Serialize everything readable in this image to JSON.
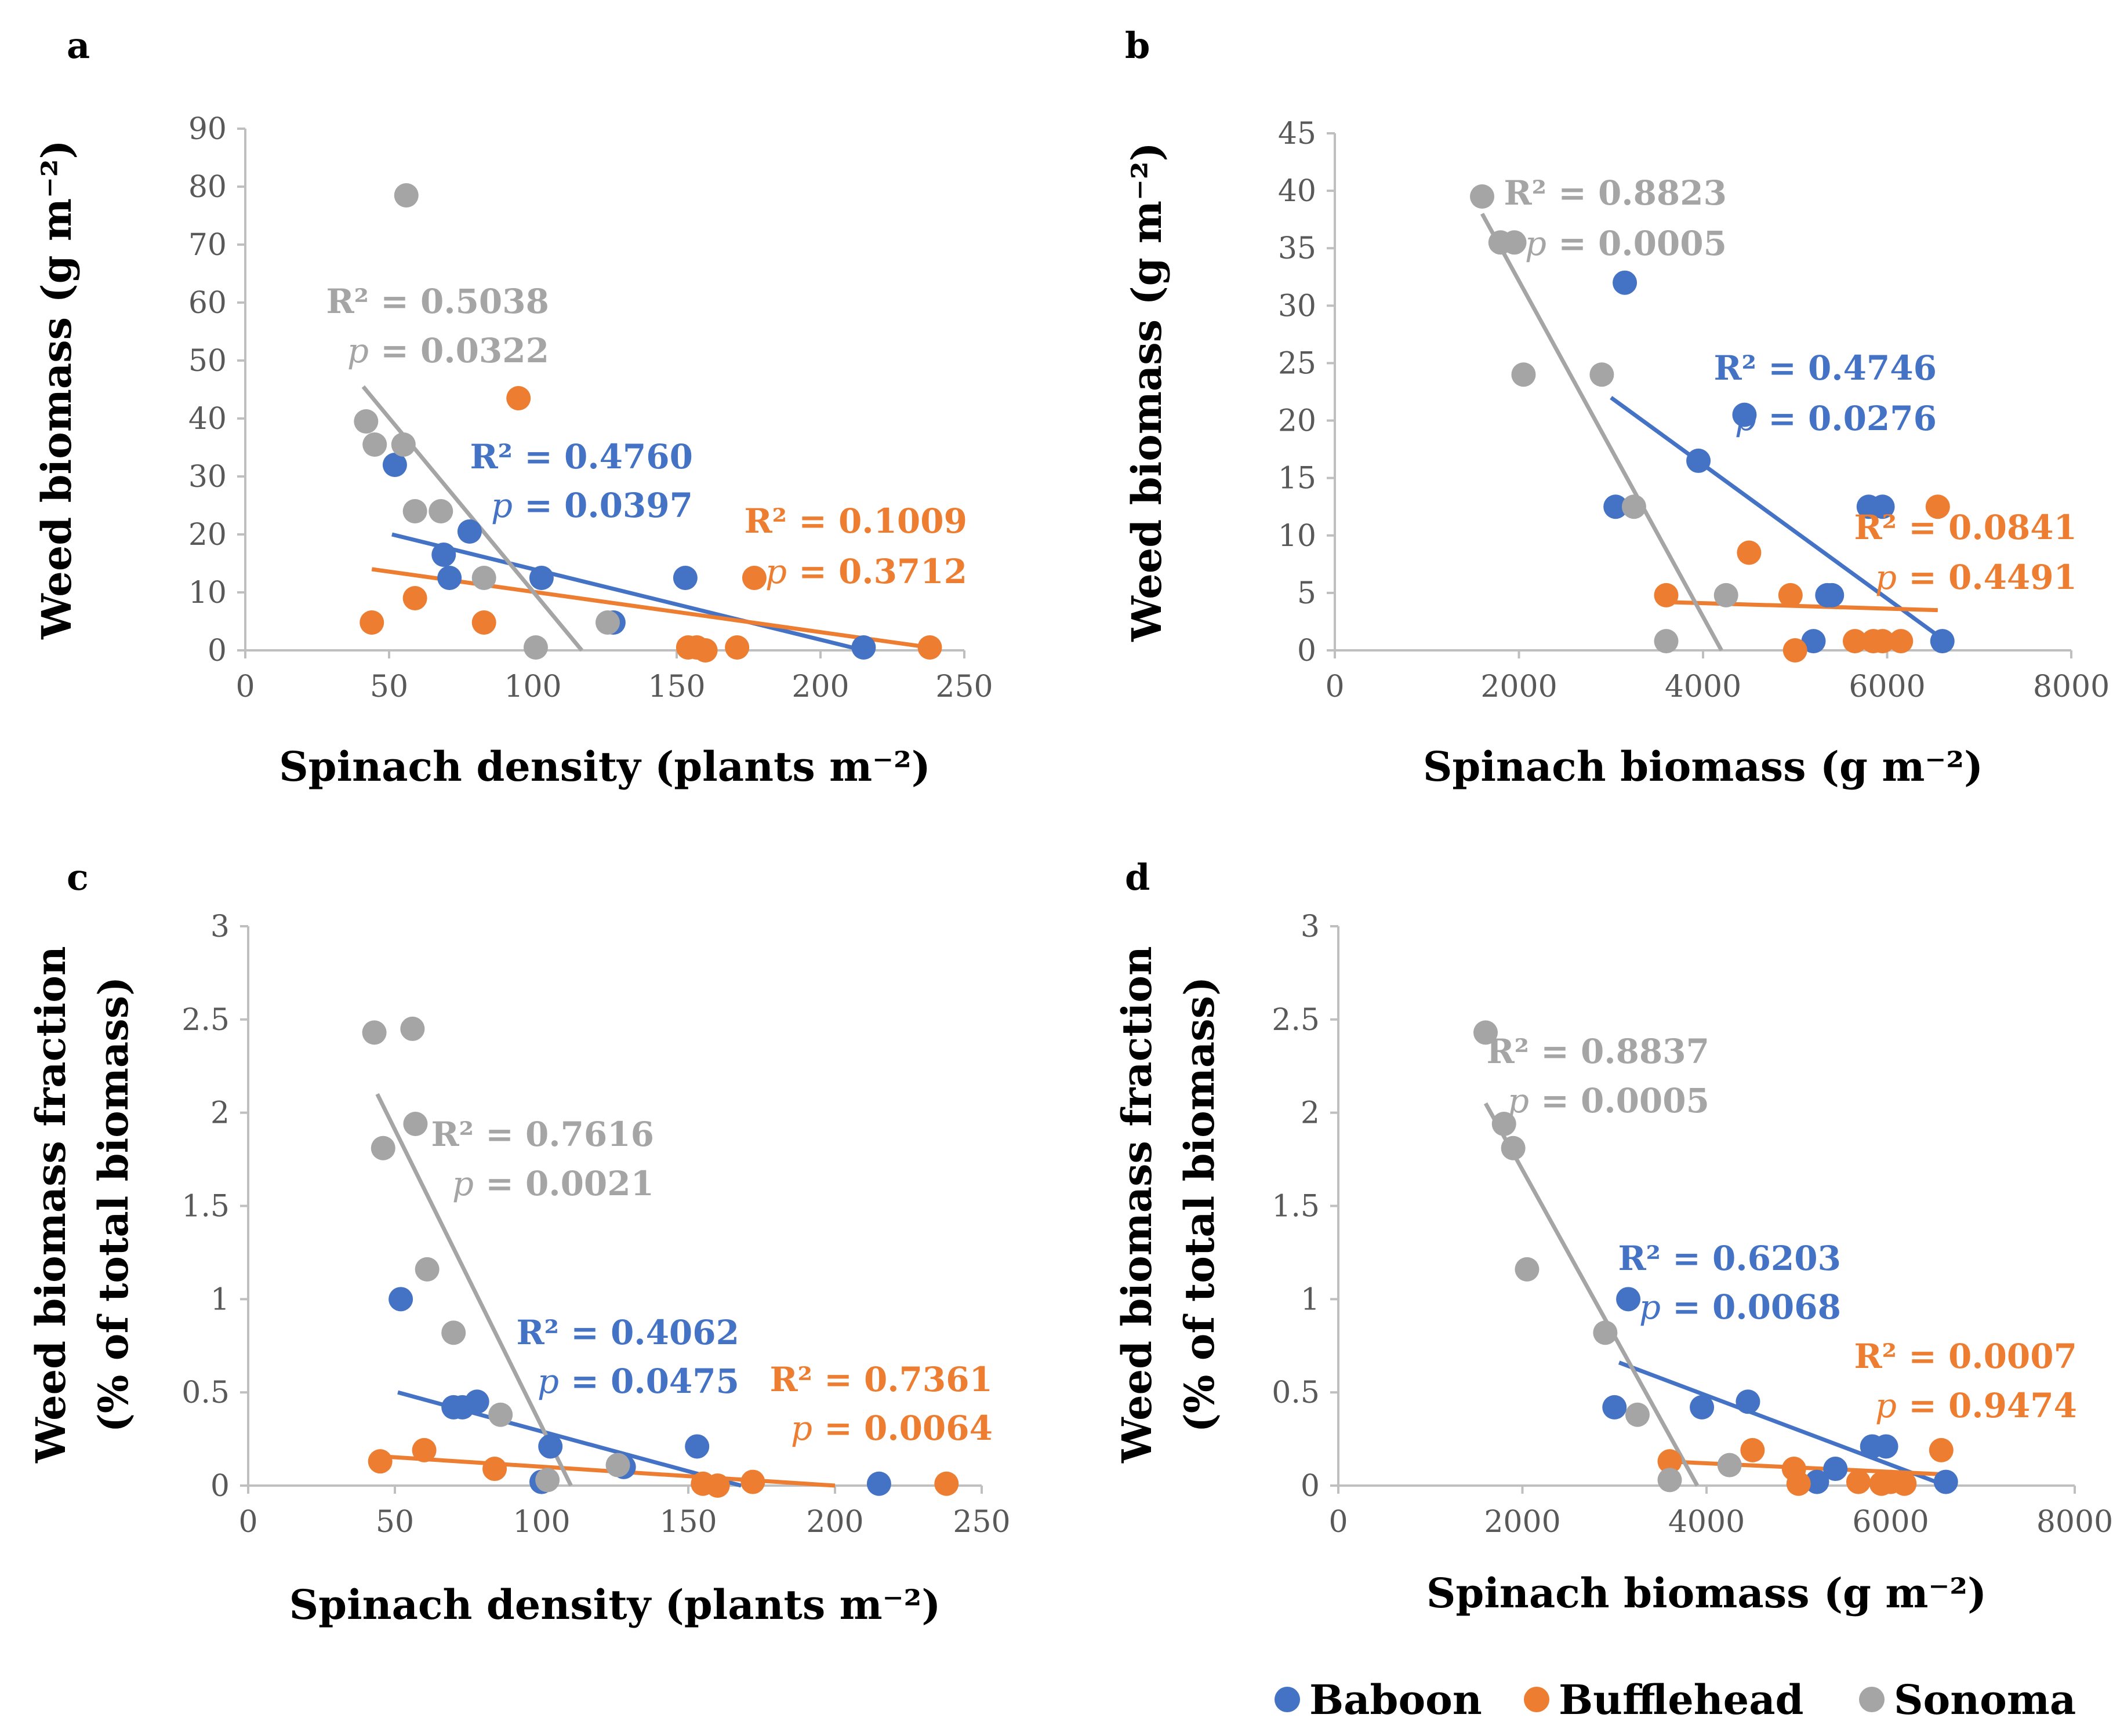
{
  "colors": {
    "Baboon": "#4472C4",
    "Bufflehead": "#ED7D31",
    "Sonoma": "#A5A5A5",
    "axis": "#BFBFBF"
  },
  "legend": {
    "items": [
      "Baboon",
      "Bufflehead",
      "Sonoma"
    ]
  },
  "chart_data": [
    {
      "panel": "a",
      "type": "scatter",
      "xlabel": "Spinach density (plants m⁻²)",
      "ylabel": "Weed biomass (g m⁻²)",
      "xlim": [
        0,
        250
      ],
      "xticks": [
        0,
        50,
        100,
        150,
        200,
        250
      ],
      "ylim": [
        0,
        90
      ],
      "yticks": [
        0,
        10,
        20,
        30,
        40,
        50,
        60,
        70,
        80,
        90
      ],
      "series": [
        {
          "name": "Baboon",
          "x": [
            52,
            69,
            71,
            78,
            103,
            128,
            153,
            215
          ],
          "y": [
            32,
            16.5,
            12.5,
            20.5,
            12.5,
            4.8,
            12.5,
            0.5
          ],
          "trend": [
            [
              51,
              20
            ],
            [
              215,
              0
            ]
          ],
          "r2": "R² = 0.4760",
          "p": "p = 0.0397"
        },
        {
          "name": "Bufflehead",
          "x": [
            44,
            59,
            83,
            95,
            154,
            157,
            160,
            171,
            177,
            238
          ],
          "y": [
            4.8,
            9,
            4.8,
            43.5,
            0.5,
            0.5,
            0,
            0.5,
            12.5,
            0.5
          ],
          "trend": [
            [
              44,
              14
            ],
            [
              238,
              0.5
            ]
          ],
          "r2": "R² = 0.1009",
          "p": "p = 0.3712"
        },
        {
          "name": "Sonoma",
          "x": [
            42,
            45,
            55,
            56,
            59,
            68,
            83,
            101,
            126
          ],
          "y": [
            39.5,
            35.5,
            35.5,
            78.5,
            24,
            24,
            12.5,
            0.5,
            4.8
          ],
          "trend": [
            [
              41,
              45.5
            ],
            [
              117,
              0
            ]
          ],
          "r2": "R² = 0.5038",
          "p": "p = 0.0322"
        }
      ]
    },
    {
      "panel": "b",
      "type": "scatter",
      "xlabel": "Spinach biomass (g m⁻²)",
      "ylabel": "Weed biomass (g m⁻²)",
      "xlim": [
        0,
        8000
      ],
      "xticks": [
        0,
        2000,
        4000,
        6000,
        8000
      ],
      "ylim": [
        0,
        45
      ],
      "yticks": [
        0,
        5,
        10,
        15,
        20,
        25,
        30,
        35,
        40,
        45
      ],
      "series": [
        {
          "name": "Baboon",
          "x": [
            3050,
            3150,
            3950,
            4450,
            5200,
            5350,
            5400,
            5800,
            5950,
            6600
          ],
          "y": [
            12.5,
            32,
            16.5,
            20.5,
            0.8,
            4.8,
            4.8,
            12.5,
            12.5,
            0.8
          ],
          "trend": [
            [
              3000,
              22
            ],
            [
              6600,
              1
            ]
          ],
          "r2": "R² = 0.4746",
          "p": "p = 0.0276"
        },
        {
          "name": "Bufflehead",
          "x": [
            3600,
            4500,
            4950,
            5000,
            5650,
            5850,
            5950,
            6150,
            6550
          ],
          "y": [
            4.8,
            8.5,
            4.8,
            0,
            0.8,
            0.8,
            0.8,
            0.8,
            12.5
          ],
          "trend": [
            [
              3600,
              4.2
            ],
            [
              6550,
              3.5
            ]
          ],
          "r2": "R² = 0.0841",
          "p": "p = 0.4491"
        },
        {
          "name": "Sonoma",
          "x": [
            1600,
            1800,
            1950,
            2050,
            2900,
            3250,
            3600,
            4250
          ],
          "y": [
            39.5,
            35.5,
            35.5,
            24,
            24,
            12.5,
            0.8,
            4.8
          ],
          "trend": [
            [
              1600,
              38
            ],
            [
              4200,
              0
            ]
          ],
          "r2": "R² = 0.8823",
          "p": "p = 0.0005"
        }
      ]
    },
    {
      "panel": "c",
      "type": "scatter",
      "xlabel": "Spinach density (plants m⁻²)",
      "ylabel_lines": [
        "Weed biomass fraction",
        "(% of total biomass)"
      ],
      "xlim": [
        0,
        250
      ],
      "xticks": [
        0,
        50,
        100,
        150,
        200,
        250
      ],
      "ylim": [
        0,
        3
      ],
      "yticks": [
        0,
        0.5,
        1,
        1.5,
        2,
        2.5,
        3
      ],
      "series": [
        {
          "name": "Baboon",
          "x": [
            52,
            70,
            73,
            78,
            100,
            103,
            128,
            153,
            215
          ],
          "y": [
            1.0,
            0.42,
            0.42,
            0.45,
            0.02,
            0.21,
            0.1,
            0.21,
            0.01
          ],
          "trend": [
            [
              51,
              0.5
            ],
            [
              168,
              0
            ]
          ],
          "r2": "R² = 0.4062",
          "p": "p = 0.0475"
        },
        {
          "name": "Bufflehead",
          "x": [
            45,
            60,
            84,
            155,
            160,
            172,
            238
          ],
          "y": [
            0.13,
            0.19,
            0.09,
            0.01,
            0,
            0.02,
            0.01
          ],
          "trend": [
            [
              42,
              0.16
            ],
            [
              200,
              0
            ]
          ],
          "r2": "R² = 0.7361",
          "p": "p = 0.0064"
        },
        {
          "name": "Sonoma",
          "x": [
            43,
            46,
            56,
            57,
            61,
            70,
            86,
            102,
            126
          ],
          "y": [
            2.43,
            1.81,
            2.45,
            1.94,
            1.16,
            0.82,
            0.38,
            0.03,
            0.11
          ],
          "trend": [
            [
              44,
              2.1
            ],
            [
              110,
              0
            ]
          ],
          "r2": "R² = 0.7616",
          "p": "p = 0.0021"
        }
      ]
    },
    {
      "panel": "d",
      "type": "scatter",
      "xlabel": "Spinach biomass (g m⁻²)",
      "ylabel_lines": [
        "Weed biomass fraction",
        "(% of total biomass)"
      ],
      "xlim": [
        0,
        8000
      ],
      "xticks": [
        0,
        2000,
        4000,
        6000,
        8000
      ],
      "ylim": [
        0,
        3
      ],
      "yticks": [
        0,
        0.5,
        1,
        1.5,
        2,
        2.5,
        3
      ],
      "series": [
        {
          "name": "Baboon",
          "x": [
            3000,
            3150,
            3950,
            4450,
            5200,
            5400,
            5800,
            5950,
            6600
          ],
          "y": [
            0.42,
            1.0,
            0.42,
            0.45,
            0.02,
            0.09,
            0.21,
            0.21,
            0.02
          ],
          "trend": [
            [
              3050,
              0.66
            ],
            [
              6600,
              0
            ]
          ],
          "r2": "R² = 0.6203",
          "p": "p = 0.0068"
        },
        {
          "name": "Bufflehead",
          "x": [
            3600,
            4500,
            4950,
            5000,
            5650,
            5900,
            6000,
            6150,
            6550
          ],
          "y": [
            0.13,
            0.19,
            0.09,
            0.01,
            0.02,
            0.01,
            0.02,
            0.01,
            0.19
          ],
          "trend": [
            [
              3550,
              0.13
            ],
            [
              6600,
              0.06
            ]
          ],
          "r2": "R² = 0.0007",
          "p": "p = 0.9474"
        },
        {
          "name": "Sonoma",
          "x": [
            1600,
            1800,
            1900,
            2050,
            2900,
            3250,
            3600,
            4250
          ],
          "y": [
            2.43,
            1.94,
            1.81,
            1.16,
            0.82,
            0.38,
            0.03,
            0.11
          ],
          "trend": [
            [
              1600,
              2.05
            ],
            [
              3900,
              0
            ]
          ],
          "r2": "R² = 0.8837",
          "p": "p = 0.0005"
        }
      ]
    }
  ]
}
